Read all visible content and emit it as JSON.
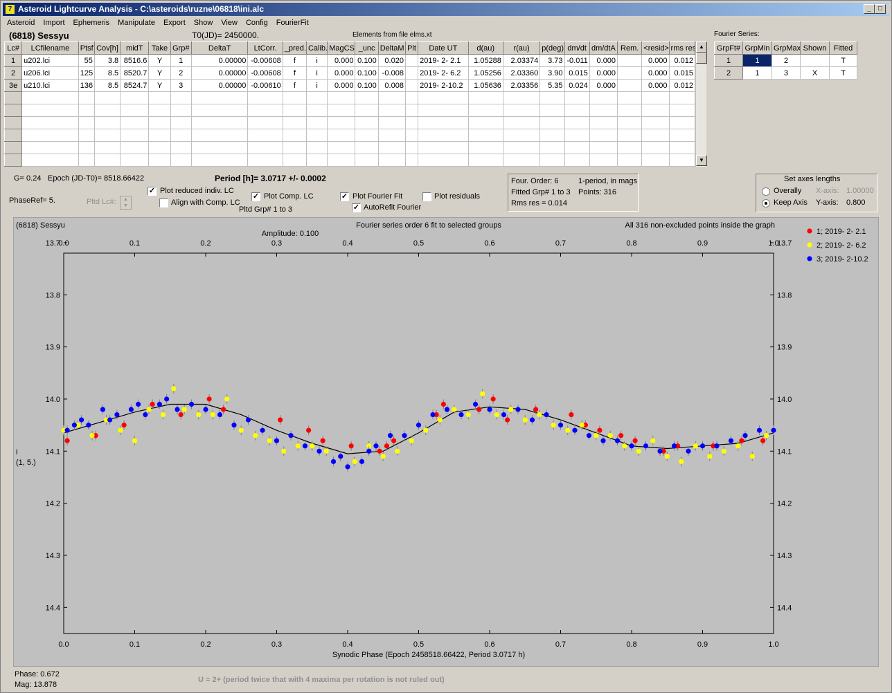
{
  "window": {
    "title": "Asteroid Lightcurve Analysis - C:\\asteroids\\ruzne\\06818\\ini.alc",
    "min": "_",
    "max": "□",
    "close": "X"
  },
  "menu": [
    "Asteroid",
    "Import",
    "Ephemeris",
    "Manipulate",
    "Export",
    "Show",
    "View",
    "Config",
    "FourierFit"
  ],
  "header": {
    "asteroid": "(6818) Sessyu",
    "t0": "T0(JD)= 2450000.",
    "elements": "Elements from file elms.xt",
    "fourier_label": "Fourier Series:"
  },
  "lc_table": {
    "columns": [
      "Lc#",
      "LCfilename",
      "Ptsf",
      "Cov[h]",
      "midT",
      "Take",
      "Grp#",
      "DeltaT",
      "LtCorr.",
      "_pred.",
      "Calib.",
      "MagCS",
      "_unc",
      "DeltaM",
      "Plt",
      "Date UT",
      "d(au)",
      "r(au)",
      "p(deg)",
      "dm/dt",
      "dm/dtA",
      "Rem.",
      "<resid>",
      "rms res"
    ],
    "rows": [
      [
        "1",
        "u202.lci",
        "55",
        "3.8",
        "8516.6",
        "Y",
        "1",
        "0.00000",
        "-0.00608",
        "f",
        "i",
        "0.000",
        "0.100",
        "0.020",
        "",
        "2019- 2- 2.1",
        "1.05288",
        "2.03374",
        "3.73",
        "-0.011",
        "0.000",
        "",
        "0.000",
        "0.012"
      ],
      [
        "2",
        "u206.lci",
        "125",
        "8.5",
        "8520.7",
        "Y",
        "2",
        "0.00000",
        "-0.00608",
        "f",
        "i",
        "0.000",
        "0.100",
        "-0.008",
        "",
        "2019- 2- 6.2",
        "1.05256",
        "2.03360",
        "3.90",
        "0.015",
        "0.000",
        "",
        "0.000",
        "0.015"
      ],
      [
        "3e",
        "u210.lci",
        "136",
        "8.5",
        "8524.7",
        "Y",
        "3",
        "0.00000",
        "-0.00610",
        "f",
        "i",
        "0.000",
        "0.100",
        "0.008",
        "",
        "2019- 2-10.2",
        "1.05636",
        "2.03356",
        "5.35",
        "0.024",
        "0.000",
        "",
        "0.000",
        "0.012"
      ]
    ]
  },
  "fourier_table": {
    "columns": [
      "GrpFt#",
      "GrpMin",
      "GrpMax",
      "Shown",
      "Fitted"
    ],
    "rows": [
      [
        "1",
        "1",
        "2",
        "",
        "T"
      ],
      [
        "2",
        "1",
        "3",
        "X",
        "T"
      ]
    ]
  },
  "controls": {
    "g": "G= 0.24",
    "epoch": "Epoch (JD-T0)= 8518.66422",
    "period": "Period [h]= 3.0717 +/- 0.0002",
    "phaseref": "PhaseRef= 5.",
    "pltd_lc": "Pltd Lc#:",
    "plot_reduced": "Plot reduced indiv. LC",
    "align_comp": "Align with Comp. LC",
    "plot_comp": "Plot Comp. LC",
    "pltd_grp": "Pltd Grp#  1   to   3",
    "plot_fourier": "Plot Fourier Fit",
    "autorefit": "AutoRefit Fourier",
    "plot_residuals": "Plot residuals",
    "check": "✓"
  },
  "info": {
    "order": "Four. Order:  6",
    "period_mode": "1-period, in mags",
    "fitted": "Fitted Grp# 1 to 3",
    "points": "Points: 316",
    "rms": "Rms res      = 0.014"
  },
  "axes_box": {
    "title": "Set axes lengths",
    "overally": "Overally",
    "keep": "Keep Axis",
    "xaxis": "X-axis:",
    "xval": "1.00000",
    "yaxis": "Y-axis:",
    "yval": "0.800"
  },
  "plot": {
    "name": "(6818) Sessyu",
    "fit_line1": "Fourier series order 6 fit to selected groups",
    "fit_line2": "Amplitude: 0.100",
    "points_note": "All 316 non-excluded points inside the graph",
    "ylabel1": "i",
    "ylabel2": "(1, 5.)",
    "xlabel": "Synodic Phase (Epoch 2458518.66422, Period 3.0717 h)"
  },
  "status": {
    "phase": "Phase:  0.672",
    "mag": "Mag:   13.878",
    "note": "U = 2+ (period twice that with 4 maxima per rotation is not ruled out)"
  },
  "chart_data": {
    "type": "scatter",
    "xlim": [
      0,
      1
    ],
    "ylim": [
      14.45,
      13.72
    ],
    "xticks": [
      0,
      0.1,
      0.2,
      0.3,
      0.4,
      0.5,
      0.6,
      0.7,
      0.8,
      0.9,
      1.0
    ],
    "yticks": [
      13.7,
      13.8,
      13.9,
      14.0,
      14.1,
      14.2,
      14.3,
      14.4
    ],
    "series": [
      {
        "name": "1; 2019- 2- 2.1",
        "color": "#ff0000",
        "x": [
          0.005,
          0.045,
          0.085,
          0.125,
          0.165,
          0.205,
          0.225,
          0.305,
          0.345,
          0.365,
          0.405,
          0.445,
          0.455,
          0.465,
          0.525,
          0.535,
          0.585,
          0.605,
          0.625,
          0.665,
          0.715,
          0.735,
          0.755,
          0.785,
          0.805,
          0.845,
          0.865,
          0.915,
          0.955,
          0.985
        ],
        "y": [
          14.08,
          14.07,
          14.05,
          14.01,
          14.03,
          14.0,
          14.02,
          14.04,
          14.06,
          14.08,
          14.09,
          14.1,
          14.09,
          14.08,
          14.03,
          14.01,
          14.02,
          14.0,
          14.04,
          14.02,
          14.03,
          14.05,
          14.06,
          14.07,
          14.08,
          14.1,
          14.09,
          14.09,
          14.08,
          14.08
        ]
      },
      {
        "name": "2; 2019- 2- 6.2",
        "color": "#ffff00",
        "x": [
          0.0,
          0.02,
          0.04,
          0.06,
          0.08,
          0.1,
          0.12,
          0.14,
          0.155,
          0.17,
          0.19,
          0.21,
          0.23,
          0.25,
          0.27,
          0.29,
          0.31,
          0.33,
          0.35,
          0.37,
          0.39,
          0.41,
          0.43,
          0.45,
          0.47,
          0.49,
          0.51,
          0.53,
          0.55,
          0.57,
          0.59,
          0.61,
          0.63,
          0.65,
          0.67,
          0.69,
          0.71,
          0.73,
          0.75,
          0.77,
          0.79,
          0.81,
          0.83,
          0.85,
          0.87,
          0.89,
          0.91,
          0.93,
          0.95,
          0.97,
          0.99
        ],
        "y": [
          14.06,
          14.05,
          14.07,
          14.04,
          14.06,
          14.08,
          14.02,
          14.03,
          13.98,
          14.02,
          14.03,
          14.03,
          14.0,
          14.06,
          14.07,
          14.08,
          14.1,
          14.09,
          14.09,
          14.1,
          14.11,
          14.12,
          14.09,
          14.11,
          14.1,
          14.08,
          14.06,
          14.04,
          14.02,
          14.03,
          13.99,
          14.03,
          14.02,
          14.04,
          14.03,
          14.05,
          14.06,
          14.05,
          14.07,
          14.07,
          14.09,
          14.1,
          14.08,
          14.11,
          14.12,
          14.09,
          14.11,
          14.1,
          14.09,
          14.11,
          14.07
        ]
      },
      {
        "name": "3; 2019- 2-10.2",
        "color": "#0000ff",
        "x": [
          0.005,
          0.015,
          0.025,
          0.035,
          0.055,
          0.065,
          0.075,
          0.095,
          0.105,
          0.115,
          0.135,
          0.145,
          0.16,
          0.18,
          0.2,
          0.22,
          0.24,
          0.26,
          0.28,
          0.3,
          0.32,
          0.34,
          0.36,
          0.38,
          0.39,
          0.4,
          0.42,
          0.43,
          0.44,
          0.46,
          0.48,
          0.5,
          0.52,
          0.54,
          0.56,
          0.58,
          0.6,
          0.62,
          0.64,
          0.66,
          0.68,
          0.7,
          0.72,
          0.74,
          0.76,
          0.78,
          0.8,
          0.82,
          0.84,
          0.86,
          0.88,
          0.9,
          0.92,
          0.94,
          0.96,
          0.98,
          1.0
        ],
        "y": [
          14.06,
          14.05,
          14.04,
          14.05,
          14.02,
          14.04,
          14.03,
          14.02,
          14.01,
          14.03,
          14.01,
          14.0,
          14.02,
          14.01,
          14.02,
          14.03,
          14.05,
          14.04,
          14.06,
          14.08,
          14.07,
          14.09,
          14.1,
          14.12,
          14.11,
          14.13,
          14.12,
          14.1,
          14.09,
          14.07,
          14.07,
          14.05,
          14.03,
          14.02,
          14.03,
          14.01,
          14.02,
          14.03,
          14.02,
          14.04,
          14.03,
          14.05,
          14.06,
          14.07,
          14.08,
          14.08,
          14.09,
          14.09,
          14.1,
          14.09,
          14.1,
          14.09,
          14.09,
          14.08,
          14.07,
          14.06,
          14.06
        ]
      }
    ],
    "fit": {
      "name": "Fourier fit",
      "color": "#000000",
      "x": [
        0,
        0.05,
        0.1,
        0.15,
        0.2,
        0.25,
        0.3,
        0.35,
        0.4,
        0.45,
        0.5,
        0.55,
        0.6,
        0.65,
        0.7,
        0.75,
        0.8,
        0.85,
        0.9,
        0.95,
        1.0
      ],
      "y": [
        14.065,
        14.045,
        14.025,
        14.01,
        14.01,
        14.03,
        14.06,
        14.085,
        14.105,
        14.1,
        14.065,
        14.025,
        14.015,
        14.02,
        14.04,
        14.065,
        14.09,
        14.095,
        14.09,
        14.085,
        14.065
      ]
    }
  }
}
